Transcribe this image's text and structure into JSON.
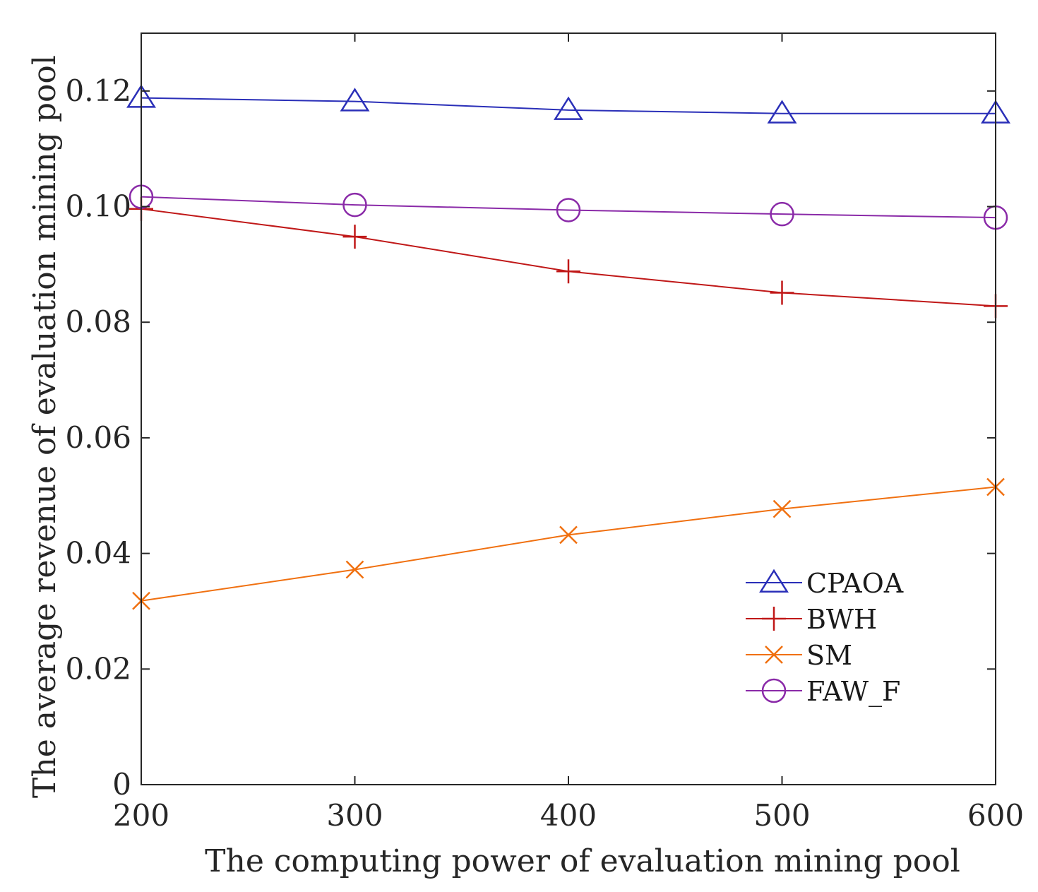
{
  "chart_data": {
    "type": "line",
    "title": "",
    "xlabel": "The computing power of evaluation mining pool",
    "ylabel": "The average revenue of evaluation mining pool",
    "x": [
      200,
      300,
      400,
      500,
      600
    ],
    "xlim": [
      200,
      600
    ],
    "ylim": [
      0,
      0.13
    ],
    "xticks": [
      200,
      300,
      400,
      500,
      600
    ],
    "xtick_labels": [
      "200",
      "300",
      "400",
      "500",
      "600"
    ],
    "yticks": [
      0,
      0.02,
      0.04,
      0.06,
      0.08,
      0.1,
      0.12
    ],
    "ytick_labels": [
      "0",
      "0.02",
      "0.04",
      "0.06",
      "0.08",
      "0.10",
      "0.12"
    ],
    "grid": false,
    "legend_position": "lower-right",
    "series": [
      {
        "name": "CPAOA",
        "marker": "triangle",
        "color": "#2a2fb8",
        "values": [
          0.1188,
          0.1182,
          0.1167,
          0.1161,
          0.1161
        ]
      },
      {
        "name": "BWH",
        "marker": "plus",
        "color": "#c01818",
        "values": [
          0.0996,
          0.0948,
          0.0888,
          0.0851,
          0.0828
        ]
      },
      {
        "name": "SM",
        "marker": "x",
        "color": "#f07010",
        "values": [
          0.0318,
          0.0372,
          0.0432,
          0.0477,
          0.0515
        ]
      },
      {
        "name": "FAW_F",
        "marker": "circle",
        "color": "#8a2aa8",
        "values": [
          0.1017,
          0.1003,
          0.0994,
          0.0987,
          0.0981
        ]
      }
    ]
  }
}
